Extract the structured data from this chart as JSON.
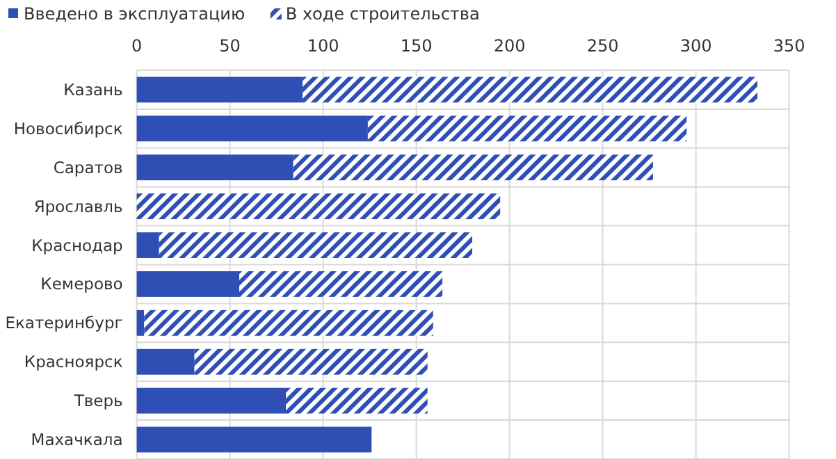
{
  "chart_data": {
    "type": "bar",
    "orientation": "horizontal",
    "stacked": true,
    "categories": [
      "Казань",
      "Новосибирск",
      "Саратов",
      "Ярославль",
      "Краснодар",
      "Кемерово",
      "Екатеринбург",
      "Красноярск",
      "Тверь",
      "Махачкала"
    ],
    "series": [
      {
        "name": "Введено в эксплуатацию",
        "color": "#2f4fb5",
        "values": [
          89,
          124,
          84,
          0,
          12,
          55,
          4,
          31,
          80,
          126
        ]
      },
      {
        "name": "В ходе строительства",
        "color": "#2f4fb5",
        "values": [
          244,
          171,
          193,
          195,
          168,
          109,
          155,
          125,
          76,
          0
        ]
      }
    ],
    "xlim": [
      0,
      350
    ],
    "xticks": [
      0,
      50,
      100,
      150,
      200,
      250,
      300,
      350
    ],
    "grid": true,
    "legend": "top left"
  }
}
